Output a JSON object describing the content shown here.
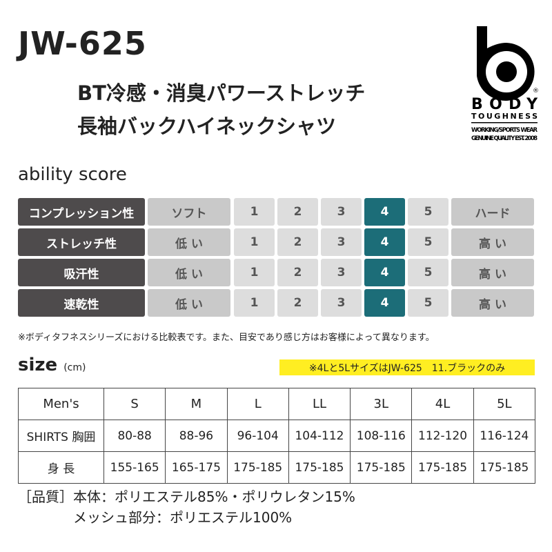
{
  "header": {
    "model": "JW-625",
    "title_line1": "BT冷感・消臭パワーストレッチ",
    "title_line2": "長袖バックハイネックシャツ"
  },
  "logo": {
    "brand": "BODY",
    "brand2": "TOUGHNESS",
    "tag1": "WORKING/SPORTS WEAR",
    "tag2": "GENUINE QUALITY EST. 2008"
  },
  "ability": {
    "heading": "ability score",
    "scale": [
      "1",
      "2",
      "3",
      "4",
      "5"
    ],
    "accent": "#1c6d78",
    "rows": [
      {
        "label": "コンプレッション性",
        "low": "ソフト",
        "high": "ハード",
        "score": 4
      },
      {
        "label": "ストレッチ性",
        "low": "低 い",
        "high": "高 い",
        "score": 4
      },
      {
        "label": "吸汗性",
        "low": "低 い",
        "high": "高 い",
        "score": 4
      },
      {
        "label": "速乾性",
        "low": "低 い",
        "high": "高 い",
        "score": 4
      }
    ],
    "note": "※ボディタフネスシリーズにおける比較表です。また、目安であり感じ方はお客様によって異なります。"
  },
  "size": {
    "heading": "size",
    "unit": "(cm)",
    "highlight": "※4Lと5LサイズはJW-625　11.ブラックのみ",
    "header": [
      "Men's",
      "S",
      "M",
      "L",
      "LL",
      "3L",
      "4L",
      "5L"
    ],
    "rows": [
      [
        "SHIRTS 胸囲",
        "80-88",
        "88-96",
        "96-104",
        "104-112",
        "108-116",
        "112-120",
        "116-124"
      ],
      [
        "身 長",
        "155-165",
        "165-175",
        "175-185",
        "175-185",
        "175-185",
        "175-185",
        "175-185"
      ]
    ]
  },
  "quality": {
    "line1": "［品質］本体：ポリエステル85%・ポリウレタン15%",
    "line2": "メッシュ部分：ポリエステル100%"
  }
}
